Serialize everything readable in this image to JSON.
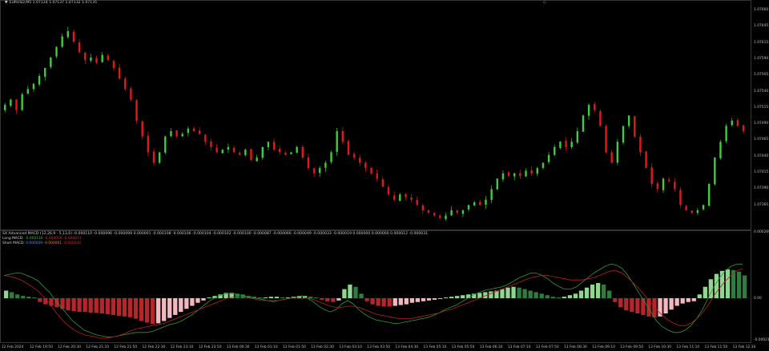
{
  "main_header": {
    "symbol_line": "EURUSD,M5  1.07134 1.07137 1.07132 1.07135"
  },
  "price_axis": [
    "1.07660",
    "1.07645",
    "1.07615",
    "1.07590",
    "1.07565",
    "1.07540",
    "1.07515",
    "1.07490",
    "1.07465",
    "1.07440",
    "1.07415",
    "1.07390",
    "1.07365"
  ],
  "indicator": {
    "title": "SX Advanced MACD (12,26,9 · 5,13,6) -0.000110 -0.000096 -0.000099 0.000001 -0.000108 -0.000106 -0.000104 -0.000102 -0.000100 -0.000087 -0.000066 -0.000049 -0.000033 -0.000019 0.000000 0.000000 0.000012 -0.000031",
    "long_macd": {
      "label": "Long MACD:",
      "v1": "-0.000116",
      "v2": "-0.000059",
      "v3": "-0.000011"
    },
    "short_macd": {
      "label": "Short MACD:",
      "v1": "0.000009",
      "v2": "-0.000001",
      "v3": "-0.000034"
    },
    "axis": [
      "0.000269",
      "0.00",
      "-0.000219"
    ]
  },
  "time_axis": [
    "12 Feb 2024",
    "12 Feb 19:50",
    "12 Feb 20:30",
    "12 Feb 21:10",
    "12 Feb 21:50",
    "12 Feb 22:30",
    "12 Feb 23:10",
    "12 Feb 23:50",
    "13 Feb 00:30",
    "13 Feb 01:10",
    "13 Feb 01:50",
    "13 Feb 02:30",
    "13 Feb 03:10",
    "13 Feb 03:50",
    "13 Feb 04:30",
    "13 Feb 05:10",
    "13 Feb 05:50",
    "13 Feb 06:30",
    "13 Feb 07:10",
    "13 Feb 07:50",
    "13 Feb 08:30",
    "13 Feb 09:10",
    "13 Feb 09:50",
    "13 Feb 10:30",
    "13 Feb 11:10",
    "13 Feb 11:50",
    "13 Feb 12:30"
  ],
  "colors": {
    "bull": "#3ccf3c",
    "bear": "#e0191c",
    "hist_pos_dark": "#2e7d3e",
    "hist_pos_light": "#8fd68f",
    "hist_neg_dark": "#b5262a",
    "hist_neg_light": "#f2b8bd",
    "line_green": "#2f9a37",
    "line_red": "#b52020"
  },
  "chart_data": {
    "type": "candlestick",
    "close_series": [
      1.0749,
      1.075,
      1.0748,
      1.0751,
      1.0752,
      1.0753,
      1.07545,
      1.0756,
      1.0758,
      1.076,
      1.0762,
      1.0763,
      1.0761,
      1.0759,
      1.07575,
      1.0758,
      1.0757,
      1.07585,
      1.07575,
      1.0756,
      1.0754,
      1.0752,
      1.075,
      1.0746,
      1.0743,
      1.074,
      1.0738,
      1.074,
      1.0743,
      1.0744,
      1.0743,
      1.07435,
      1.07445,
      1.0744,
      1.07435,
      1.0742,
      1.0741,
      1.074,
      1.07405,
      1.0741,
      1.074,
      1.07395,
      1.07405,
      1.07385,
      1.0739,
      1.0741,
      1.0742,
      1.07405,
      1.074,
      1.07395,
      1.074,
      1.0741,
      1.0739,
      1.0737,
      1.0736,
      1.0737,
      1.0738,
      1.074,
      1.0744,
      1.0742,
      1.07395,
      1.0739,
      1.0738,
      1.0737,
      1.0736,
      1.0735,
      1.07335,
      1.0732,
      1.0731,
      1.0732,
      1.07315,
      1.0731,
      1.073,
      1.0729,
      1.07285,
      1.0728,
      1.07275,
      1.0728,
      1.0729,
      1.07285,
      1.0729,
      1.073,
      1.07305,
      1.073,
      1.0731,
      1.0733,
      1.0735,
      1.0736,
      1.07355,
      1.0736,
      1.07355,
      1.07365,
      1.0736,
      1.0737,
      1.0738,
      1.07395,
      1.0741,
      1.0742,
      1.0741,
      1.0742,
      1.0744,
      1.0747,
      1.0749,
      1.0748,
      1.0745,
      1.074,
      1.0738,
      1.0742,
      1.0745,
      1.0747,
      1.0743,
      1.074,
      1.0737,
      1.0734,
      1.0733,
      1.0735,
      1.07345,
      1.0733,
      1.073,
      1.0729,
      1.07285,
      1.0729,
      1.073,
      1.0734,
      1.0739,
      1.0742,
      1.0745,
      1.0746,
      1.0745,
      1.0744
    ],
    "macd_histogram": [
      0.1,
      0.08,
      0.05,
      0.03,
      0.02,
      0.01,
      -0.05,
      -0.08,
      -0.1,
      -0.12,
      -0.14,
      -0.16,
      -0.17,
      -0.18,
      -0.18,
      -0.19,
      -0.19,
      -0.2,
      -0.21,
      -0.22,
      -0.23,
      -0.24,
      -0.25,
      -0.27,
      -0.3,
      -0.32,
      -0.34,
      -0.33,
      -0.3,
      -0.26,
      -0.22,
      -0.18,
      -0.14,
      -0.1,
      -0.06,
      -0.03,
      0.01,
      0.03,
      0.05,
      0.07,
      0.07,
      0.06,
      0.05,
      0.03,
      0.02,
      0.01,
      0.01,
      0.02,
      0.02,
      0.01,
      0.01,
      0.02,
      0.03,
      0.03,
      0.02,
      0.01,
      -0.02,
      -0.04,
      -0.05,
      -0.03,
      0.12,
      0.18,
      0.15,
      0.06,
      -0.04,
      -0.08,
      -0.1,
      -0.11,
      -0.11,
      -0.1,
      -0.09,
      -0.08,
      -0.06,
      -0.05,
      -0.04,
      -0.03,
      -0.02,
      -0.01,
      0.01,
      0.02,
      0.03,
      0.04,
      0.05,
      0.06,
      0.07,
      0.08,
      0.09,
      0.1,
      0.12,
      0.14,
      0.15,
      0.14,
      0.12,
      0.1,
      0.08,
      0.06,
      0.04,
      0.02,
      0.01,
      0.02,
      0.04,
      0.06,
      0.1,
      0.14,
      0.18,
      0.2,
      0.18,
      0.1,
      -0.05,
      -0.12,
      -0.16,
      -0.18,
      -0.2,
      -0.22,
      -0.24,
      -0.25,
      -0.24,
      -0.2,
      -0.15,
      -0.1,
      -0.07,
      -0.05,
      -0.04,
      0.05,
      0.15,
      0.25,
      0.32,
      0.36,
      0.38,
      0.37,
      0.35,
      0.3
    ],
    "long_line": [
      0.2,
      0.21,
      0.22,
      0.22,
      0.2,
      0.18,
      0.15,
      0.1,
      0.05,
      -0.02,
      -0.08,
      -0.14,
      -0.2,
      -0.24,
      -0.28,
      -0.3,
      -0.32,
      -0.33,
      -0.34,
      -0.34,
      -0.33,
      -0.32,
      -0.31,
      -0.3,
      -0.3,
      -0.3,
      -0.29,
      -0.27,
      -0.25,
      -0.23,
      -0.22,
      -0.2,
      -0.17,
      -0.14,
      -0.1,
      -0.06,
      -0.02,
      0.01,
      0.03,
      0.04,
      0.04,
      0.03,
      0.02,
      0.01,
      0.0,
      -0.01,
      -0.02,
      -0.03,
      -0.02,
      -0.01,
      0.0,
      0.01,
      0.02,
      0.0,
      -0.03,
      -0.07,
      -0.1,
      -0.12,
      -0.1,
      -0.05,
      -0.02,
      -0.05,
      -0.1,
      -0.14,
      -0.17,
      -0.19,
      -0.2,
      -0.21,
      -0.22,
      -0.22,
      -0.21,
      -0.2,
      -0.19,
      -0.18,
      -0.17,
      -0.15,
      -0.13,
      -0.1,
      -0.08,
      -0.06,
      -0.03,
      0.0,
      0.03,
      0.05,
      0.07,
      0.08,
      0.09,
      0.1,
      0.12,
      0.15,
      0.18,
      0.2,
      0.22,
      0.22,
      0.2,
      0.17,
      0.13,
      0.1,
      0.08,
      0.08,
      0.1,
      0.14,
      0.18,
      0.22,
      0.25,
      0.28,
      0.3,
      0.29,
      0.26,
      0.2,
      0.12,
      0.04,
      -0.04,
      -0.12,
      -0.2,
      -0.25,
      -0.28,
      -0.3,
      -0.3,
      -0.28,
      -0.24,
      -0.18,
      -0.1,
      0.0,
      0.1,
      0.18,
      0.24,
      0.28,
      0.3,
      0.3
    ],
    "short_line": [
      0.2,
      0.19,
      0.18,
      0.16,
      0.13,
      0.1,
      0.06,
      0.01,
      -0.05,
      -0.12,
      -0.18,
      -0.23,
      -0.27,
      -0.3,
      -0.32,
      -0.33,
      -0.34,
      -0.35,
      -0.35,
      -0.34,
      -0.33,
      -0.31,
      -0.29,
      -0.27,
      -0.26,
      -0.25,
      -0.24,
      -0.23,
      -0.22,
      -0.2,
      -0.18,
      -0.16,
      -0.14,
      -0.12,
      -0.1,
      -0.08,
      -0.06,
      -0.04,
      -0.02,
      0.0,
      0.01,
      0.01,
      0.01,
      0.0,
      -0.01,
      -0.02,
      -0.02,
      -0.02,
      -0.02,
      -0.01,
      0.0,
      0.0,
      0.0,
      0.0,
      -0.01,
      -0.03,
      -0.05,
      -0.07,
      -0.08,
      -0.08,
      -0.07,
      -0.07,
      -0.08,
      -0.1,
      -0.12,
      -0.14,
      -0.15,
      -0.16,
      -0.17,
      -0.18,
      -0.18,
      -0.18,
      -0.17,
      -0.16,
      -0.15,
      -0.14,
      -0.13,
      -0.11,
      -0.1,
      -0.08,
      -0.06,
      -0.04,
      -0.02,
      0.0,
      0.02,
      0.04,
      0.06,
      0.08,
      0.1,
      0.12,
      0.14,
      0.16,
      0.18,
      0.19,
      0.2,
      0.2,
      0.19,
      0.18,
      0.17,
      0.16,
      0.16,
      0.16,
      0.17,
      0.18,
      0.2,
      0.22,
      0.24,
      0.24,
      0.22,
      0.18,
      0.13,
      0.08,
      0.02,
      -0.04,
      -0.1,
      -0.15,
      -0.19,
      -0.22,
      -0.24,
      -0.24,
      -0.22,
      -0.18,
      -0.13,
      -0.06,
      0.02,
      0.09,
      0.15,
      0.2,
      0.24,
      0.26
    ]
  }
}
